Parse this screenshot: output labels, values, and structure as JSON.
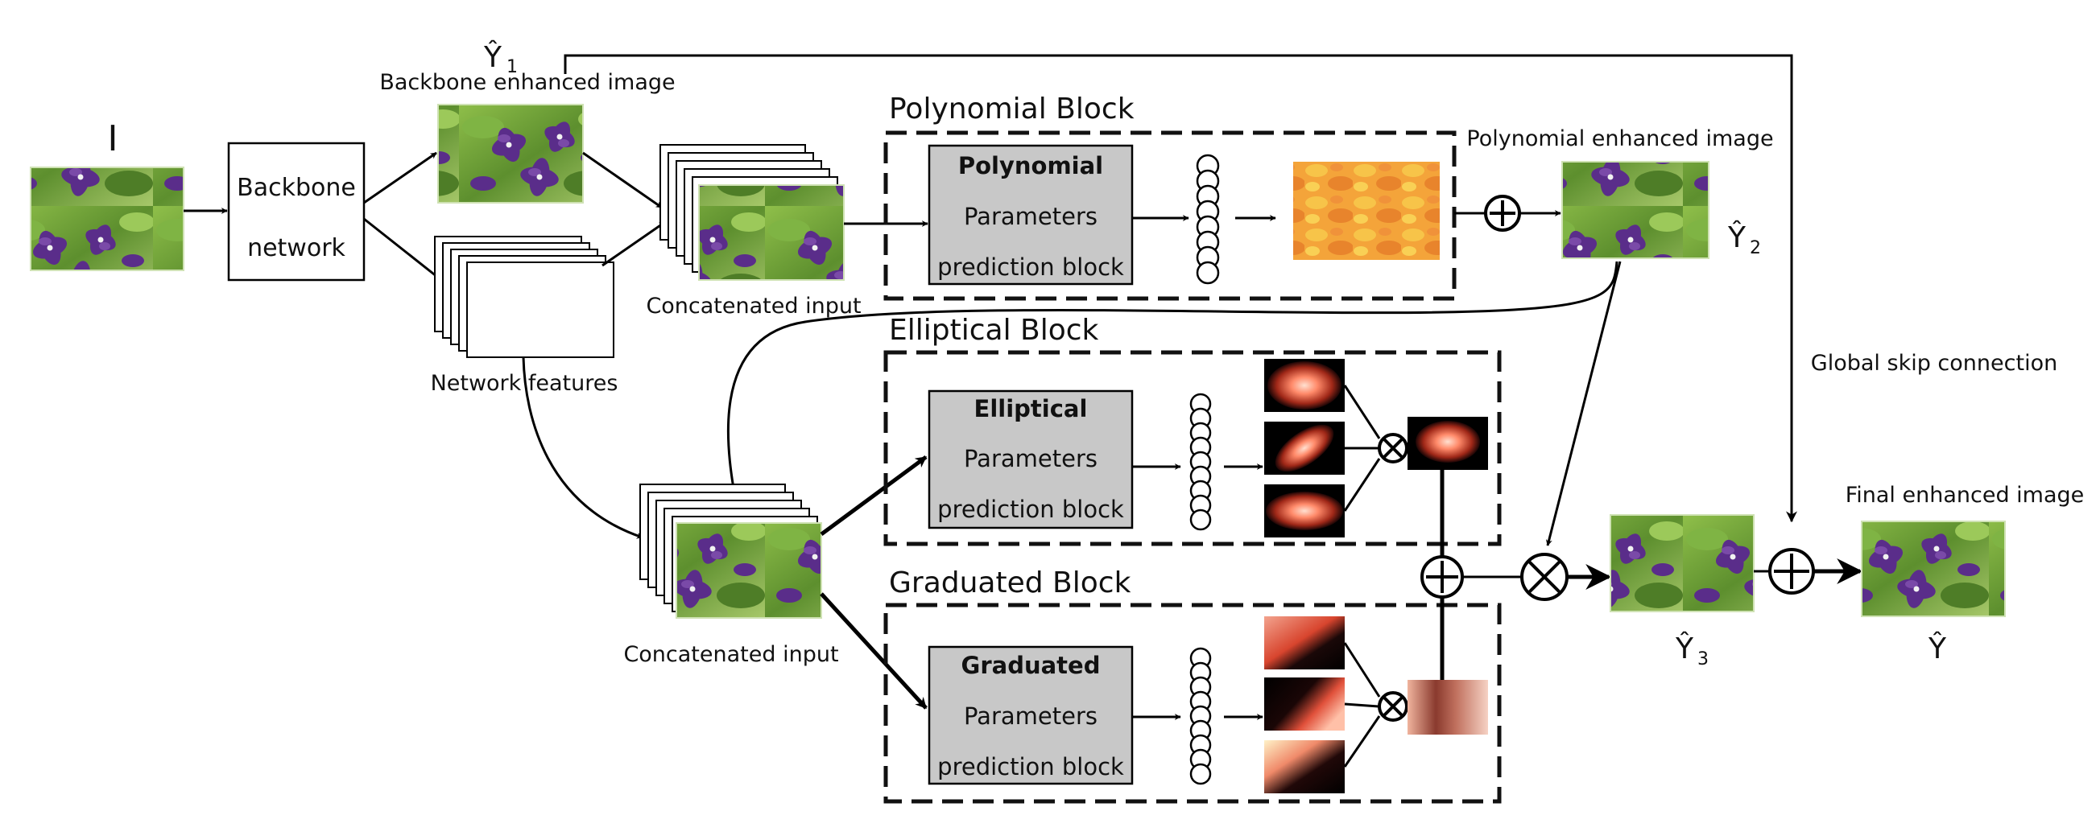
{
  "input": {
    "label": "I"
  },
  "backbone": {
    "line1": "Backbone",
    "line2": "network"
  },
  "y1": {
    "symbol": "Ŷ",
    "sub": "1",
    "caption": "Backbone enhanced image"
  },
  "features": {
    "caption": "Network features"
  },
  "concat_top": {
    "caption": "Concatenated input"
  },
  "concat_bottom": {
    "caption": "Concatenated input"
  },
  "polynomial": {
    "title": "Polynomial Block",
    "bold": "Polynomial",
    "line2": "Parameters",
    "line3": "prediction block"
  },
  "elliptical": {
    "title": "Elliptical Block",
    "bold": "Elliptical",
    "line2": "Parameters",
    "line3": "prediction block"
  },
  "graduated": {
    "title": "Graduated Block",
    "bold": "Graduated",
    "line2": "Parameters",
    "line3": "prediction block"
  },
  "y2": {
    "symbol": "Ŷ",
    "sub": "2",
    "caption": "Polynomial enhanced image"
  },
  "y3": {
    "symbol": "Ŷ",
    "sub": "3"
  },
  "global_skip": {
    "caption": "Global skip connection"
  },
  "final": {
    "symbol": "Ŷ",
    "caption": "Final enhanced image"
  },
  "colors": {
    "box_fill": "#c8c8c8",
    "leaf": "#6a9a3a",
    "flower": "#5a2d8a"
  }
}
